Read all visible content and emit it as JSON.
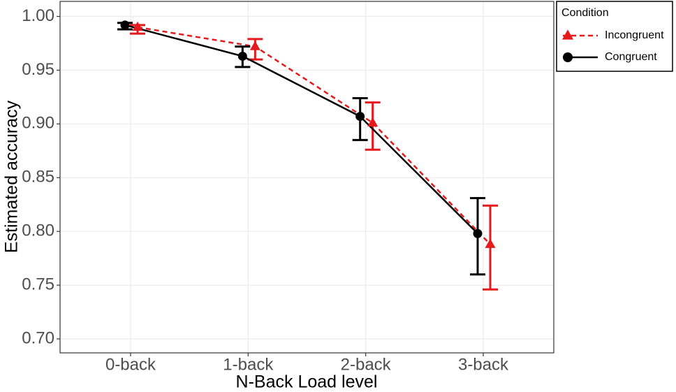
{
  "chart_data": {
    "type": "errorbar-line",
    "x_label": "N-Back Load level",
    "y_label": "Estimated accuracy",
    "categories": [
      "0-back",
      "1-back",
      "2-back",
      "3-back"
    ],
    "legend_title": "Condition",
    "legend_position": "right",
    "grid": true,
    "ylim": [
      0.687,
      1.014
    ],
    "yticks": [
      {
        "value": 0.7,
        "label": "0.70"
      },
      {
        "value": 0.75,
        "label": "0.75"
      },
      {
        "value": 0.8,
        "label": "0.80"
      },
      {
        "value": 0.85,
        "label": "0.85"
      },
      {
        "value": 0.9,
        "label": "0.90"
      },
      {
        "value": 0.95,
        "label": "0.95"
      },
      {
        "value": 1.0,
        "label": "1.00"
      }
    ],
    "series": [
      {
        "name": "Incongruent",
        "color": "#e41a1c",
        "marker": "triangle",
        "dash": true,
        "values": [
          0.99,
          0.972,
          0.901,
          0.788
        ],
        "lower": [
          0.984,
          0.96,
          0.876,
          0.746
        ],
        "upper": [
          0.992,
          0.979,
          0.92,
          0.824
        ]
      },
      {
        "name": "Congruent",
        "color": "#000000",
        "marker": "circle",
        "dash": false,
        "values": [
          0.992,
          0.963,
          0.907,
          0.798
        ],
        "lower": [
          0.988,
          0.953,
          0.885,
          0.76
        ],
        "upper": [
          0.994,
          0.972,
          0.924,
          0.831
        ]
      }
    ]
  }
}
